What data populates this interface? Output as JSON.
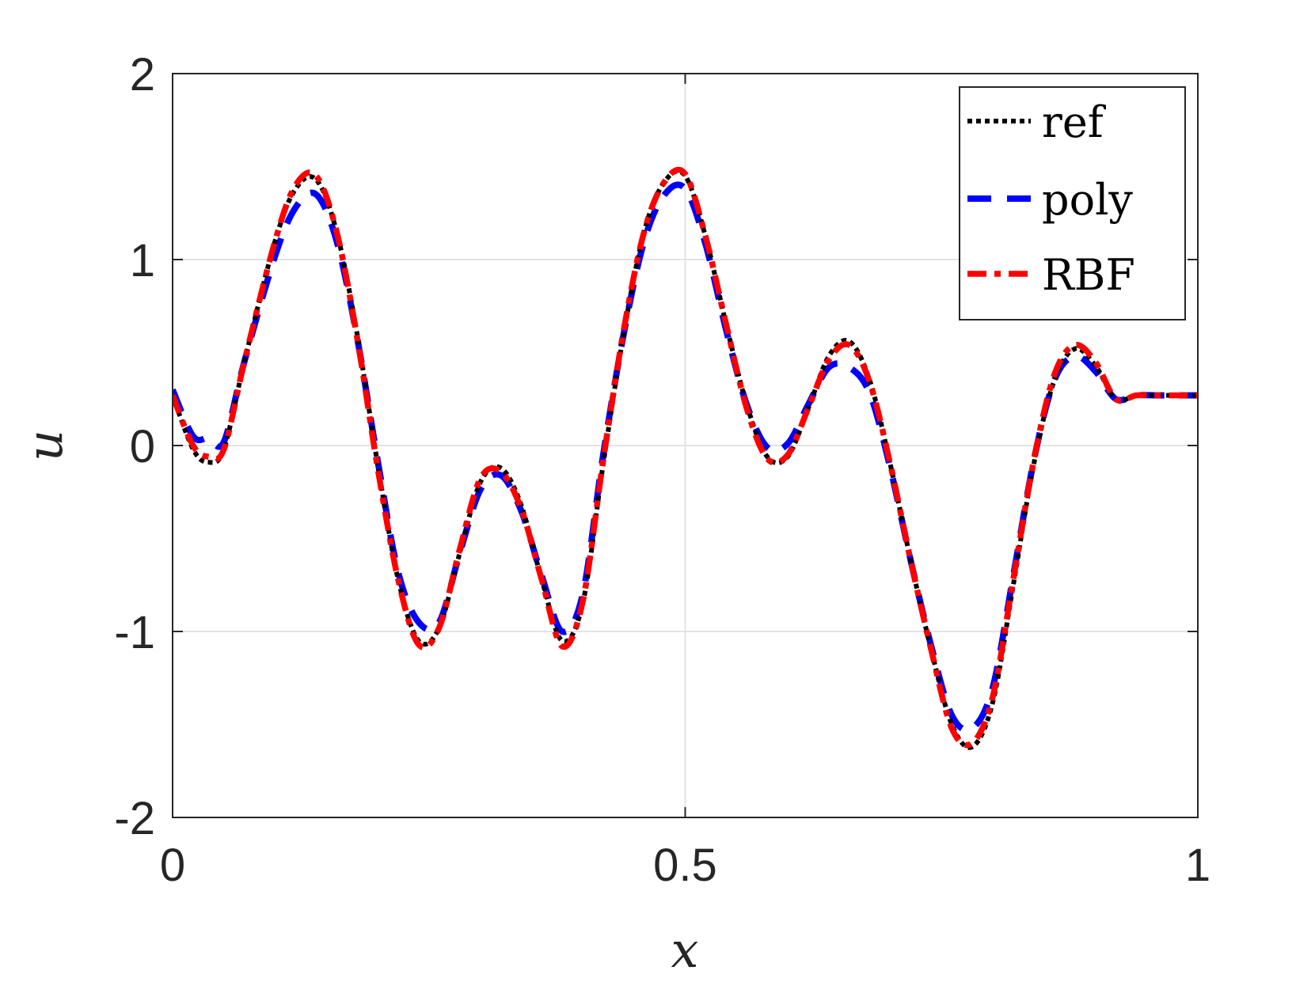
{
  "chart_data": {
    "type": "line",
    "xlabel": "x",
    "ylabel": "u",
    "xlim": [
      0,
      1
    ],
    "ylim": [
      -2,
      2
    ],
    "xticks": [
      0,
      0.5,
      1
    ],
    "xtick_labels": [
      "0",
      "0.5",
      "1"
    ],
    "yticks": [
      -2,
      -1,
      0,
      1,
      2
    ],
    "ytick_labels": [
      "-2",
      "-1",
      "0",
      "1",
      "2"
    ],
    "grid": true,
    "legend_position": "top-right",
    "x": [
      0.0,
      0.02,
      0.035,
      0.05,
      0.07,
      0.1,
      0.12,
      0.14,
      0.16,
      0.18,
      0.2,
      0.22,
      0.24,
      0.26,
      0.28,
      0.3,
      0.32,
      0.34,
      0.36,
      0.38,
      0.4,
      0.42,
      0.44,
      0.46,
      0.48,
      0.5,
      0.52,
      0.54,
      0.56,
      0.58,
      0.6,
      0.62,
      0.64,
      0.66,
      0.68,
      0.7,
      0.72,
      0.74,
      0.76,
      0.78,
      0.8,
      0.82,
      0.84,
      0.86,
      0.88,
      0.9,
      0.92,
      0.94,
      0.96,
      0.98,
      1.0
    ],
    "series": [
      {
        "name": "ref",
        "color": "#000000",
        "dash": "dotted",
        "values": [
          0.27,
          -0.02,
          -0.09,
          -0.02,
          0.45,
          1.1,
          1.38,
          1.43,
          1.15,
          0.6,
          -0.1,
          -0.72,
          -1.05,
          -0.98,
          -0.58,
          -0.2,
          -0.12,
          -0.32,
          -0.72,
          -1.05,
          -0.85,
          -0.1,
          0.6,
          1.15,
          1.42,
          1.45,
          1.12,
          0.65,
          0.22,
          -0.06,
          -0.06,
          0.2,
          0.48,
          0.56,
          0.35,
          -0.1,
          -0.62,
          -1.1,
          -1.5,
          -1.62,
          -1.38,
          -0.75,
          -0.1,
          0.35,
          0.52,
          0.43,
          0.25,
          0.27,
          0.27,
          0.27,
          0.27
        ]
      },
      {
        "name": "poly",
        "color": "#0000ff",
        "dash": "dashed",
        "values": [
          0.3,
          0.05,
          0.04,
          0.02,
          0.45,
          1.02,
          1.28,
          1.35,
          1.1,
          0.58,
          -0.08,
          -0.68,
          -0.95,
          -0.95,
          -0.58,
          -0.24,
          -0.16,
          -0.35,
          -0.7,
          -1.0,
          -0.8,
          -0.05,
          0.6,
          1.1,
          1.35,
          1.38,
          1.08,
          0.62,
          0.22,
          -0.01,
          0.01,
          0.22,
          0.42,
          0.42,
          0.28,
          -0.12,
          -0.62,
          -1.08,
          -1.45,
          -1.52,
          -1.3,
          -0.7,
          -0.08,
          0.35,
          0.48,
          0.4,
          0.25,
          0.27,
          0.27,
          0.27,
          0.27
        ]
      },
      {
        "name": "RBF",
        "color": "#ff0000",
        "dash": "dashdot",
        "values": [
          0.27,
          0.0,
          -0.06,
          -0.02,
          0.45,
          1.1,
          1.4,
          1.45,
          1.15,
          0.58,
          -0.12,
          -0.72,
          -1.07,
          -0.98,
          -0.56,
          -0.18,
          -0.14,
          -0.34,
          -0.72,
          -1.08,
          -0.84,
          -0.08,
          0.62,
          1.15,
          1.42,
          1.46,
          1.12,
          0.65,
          0.2,
          -0.07,
          -0.05,
          0.2,
          0.46,
          0.54,
          0.34,
          -0.1,
          -0.62,
          -1.1,
          -1.52,
          -1.6,
          -1.35,
          -0.72,
          -0.08,
          0.38,
          0.54,
          0.45,
          0.25,
          0.27,
          0.27,
          0.27,
          0.27
        ]
      }
    ]
  }
}
